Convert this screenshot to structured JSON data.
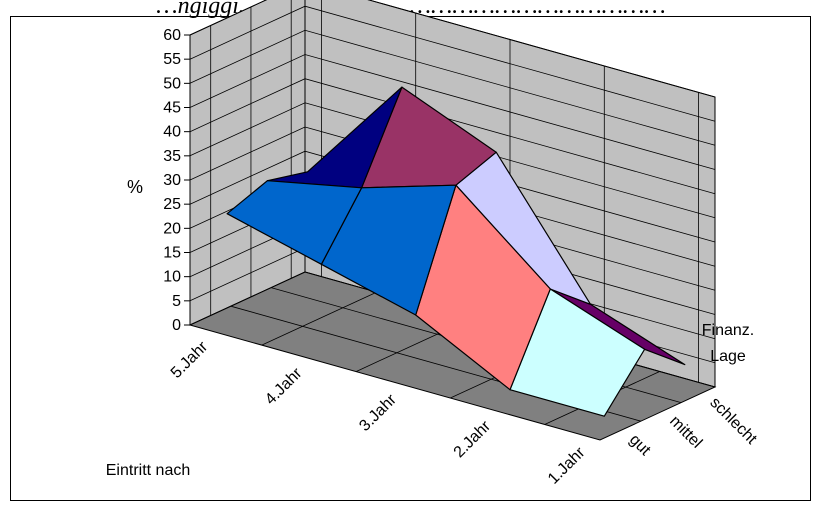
{
  "figure": {
    "caption": "…ngiggi……………………………………………………"
  },
  "chart_data": {
    "type": "surface",
    "title": "",
    "zlabel": "%",
    "xlabel": "Eintritt nach",
    "ylabel_lines": [
      "Finanz.",
      "Lage"
    ],
    "z_ticks": [
      "0",
      "5",
      "10",
      "15",
      "20",
      "25",
      "30",
      "35",
      "40",
      "45",
      "50",
      "55",
      "60"
    ],
    "zlim": [
      0,
      60
    ],
    "x_categories": [
      "5.Jahr",
      "4.Jahr",
      "3.Jahr",
      "2.Jahr",
      "1.Jahr"
    ],
    "y_categories": [
      "gut",
      "mittel",
      "schlecht"
    ],
    "series": [
      {
        "name": "gut",
        "values": [
          22,
          17,
          12,
          2,
          2
        ]
      },
      {
        "name": "mittel",
        "values": [
          25,
          29,
          35,
          19,
          12
        ]
      },
      {
        "name": "schlecht",
        "values": [
          23,
          46,
          38,
          12,
          5
        ]
      }
    ],
    "band_colors": [
      "#ffffcc",
      "#ccffff",
      "#660066",
      "#ff8080",
      "#0066cc",
      "#ccccff",
      "#000080",
      "#993366",
      "#9999ff"
    ],
    "wall_color": "#c0c0c0",
    "floor_color": "#808080",
    "grid": true
  }
}
